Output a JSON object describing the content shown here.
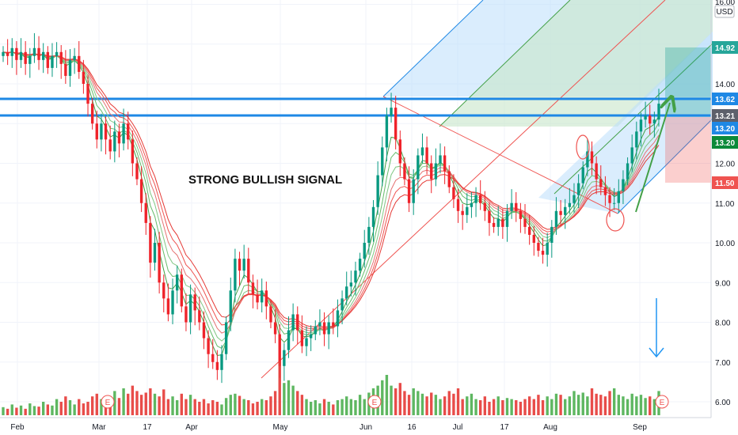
{
  "currency": "USD",
  "annotation": "STRONG BULLISH SIGNAL",
  "earnings_marker": "E",
  "colors": {
    "up": "#26a69a",
    "up_candle": "#089981",
    "down": "#ef232a",
    "volume_up": "#4caf50",
    "volume_down": "#e53935",
    "hline": "#1e88e5",
    "fork_blue": "#bbdefb",
    "fork_green": "#c8e6c9",
    "target": "#26a69a",
    "stop": "#ef5350",
    "arrow_green": "#43a047",
    "arrow_blue": "#2196f3"
  },
  "chart_data": {
    "type": "candlestick",
    "ylim": [
      5.7,
      16.0
    ],
    "y_ticks": [
      "6.00",
      "7.00",
      "8.00",
      "9.00",
      "10.00",
      "11.00",
      "12.00",
      "14.00"
    ],
    "y_top_partial": "16.00",
    "x_ticks": [
      "Feb",
      "Mar",
      "17",
      "Apr",
      "May",
      "Jun",
      "16",
      "Jul",
      "17",
      "Aug",
      "Sep"
    ],
    "price_labels": [
      {
        "value": "14.92",
        "color": "#26a69a"
      },
      {
        "value": "13.62",
        "color": "#1e88e5"
      },
      {
        "value": "13.21",
        "color": "#5d606b"
      },
      {
        "value": "13.20",
        "color": "#1e88e5"
      },
      {
        "value": "13.20",
        "color": "#0b8a3a"
      },
      {
        "value": "11.50",
        "color": "#ef5350"
      }
    ],
    "horizontal_lines": [
      13.62,
      13.21
    ],
    "closes": [
      14.8,
      14.7,
      14.9,
      14.6,
      14.8,
      14.5,
      14.7,
      14.9,
      14.6,
      14.8,
      14.4,
      14.7,
      14.8,
      14.5,
      14.2,
      14.6,
      14.7,
      14.3,
      14.0,
      13.5,
      13.0,
      12.6,
      13.0,
      12.6,
      12.3,
      12.8,
      12.5,
      13.0,
      12.6,
      12.0,
      11.6,
      11.0,
      10.5,
      9.5,
      10.0,
      9.0,
      8.6,
      8.2,
      8.8,
      9.2,
      8.4,
      8.0,
      8.7,
      8.3,
      8.0,
      7.6,
      7.2,
      7.0,
      6.8,
      7.2,
      8.0,
      8.8,
      9.6,
      9.3,
      9.6,
      9.0,
      8.7,
      8.5,
      8.8,
      8.4,
      8.0,
      7.7,
      6.9,
      7.3,
      7.8,
      8.2,
      7.8,
      7.4,
      7.6,
      7.7,
      7.9,
      8.0,
      7.7,
      8.0,
      7.9,
      8.3,
      8.6,
      8.9,
      9.0,
      9.3,
      9.6,
      10.0,
      10.4,
      10.9,
      11.7,
      12.4,
      13.2,
      13.4,
      12.6,
      12.0,
      11.6,
      11.0,
      11.6,
      12.2,
      12.4,
      12.0,
      11.6,
      12.0,
      12.2,
      11.8,
      11.4,
      11.1,
      10.8,
      10.7,
      10.9,
      11.0,
      11.2,
      11.0,
      10.8,
      10.5,
      10.4,
      10.6,
      10.4,
      10.8,
      11.0,
      10.8,
      10.6,
      10.4,
      10.2,
      10.0,
      9.8,
      9.7,
      10.0,
      10.4,
      10.8,
      10.7,
      10.9,
      11.0,
      11.2,
      11.5,
      11.9,
      12.3,
      12.0,
      11.6,
      11.4,
      11.2,
      11.0,
      11.0,
      11.3,
      11.6,
      12.0,
      12.4,
      12.8,
      13.1,
      13.2,
      13.0,
      13.1,
      13.5
    ],
    "volumes": [
      0.15,
      0.12,
      0.2,
      0.14,
      0.18,
      0.12,
      0.22,
      0.17,
      0.16,
      0.25,
      0.2,
      0.18,
      0.3,
      0.25,
      0.35,
      0.28,
      0.2,
      0.3,
      0.22,
      0.25,
      0.35,
      0.4,
      0.3,
      0.28,
      0.33,
      0.45,
      0.32,
      0.5,
      0.4,
      0.55,
      0.45,
      0.38,
      0.42,
      0.5,
      0.4,
      0.35,
      0.48,
      0.3,
      0.35,
      0.28,
      0.4,
      0.3,
      0.38,
      0.3,
      0.25,
      0.3,
      0.22,
      0.28,
      0.25,
      0.2,
      0.32,
      0.38,
      0.4,
      0.36,
      0.3,
      0.28,
      0.22,
      0.25,
      0.3,
      0.28,
      0.35,
      0.45,
      1.0,
      0.6,
      0.65,
      0.55,
      0.45,
      0.38,
      0.3,
      0.25,
      0.28,
      0.22,
      0.3,
      0.25,
      0.2,
      0.28,
      0.3,
      0.35,
      0.3,
      0.28,
      0.38,
      0.3,
      0.42,
      0.5,
      0.55,
      0.65,
      0.75,
      0.55,
      0.5,
      0.6,
      0.45,
      0.38,
      0.5,
      0.45,
      0.4,
      0.35,
      0.42,
      0.38,
      0.3,
      0.35,
      0.45,
      0.4,
      0.5,
      0.3,
      0.35,
      0.4,
      0.3,
      0.28,
      0.35,
      0.25,
      0.3,
      0.35,
      0.28,
      0.32,
      0.3,
      0.28,
      0.25,
      0.3,
      0.35,
      0.3,
      0.38,
      0.28,
      0.35,
      0.3,
      0.4,
      0.38,
      0.3,
      0.35,
      0.45,
      0.38,
      0.42,
      0.35,
      0.5,
      0.4,
      0.38,
      0.35,
      0.45,
      0.5,
      0.38,
      0.35,
      0.3,
      0.4,
      0.35,
      0.38,
      0.32,
      0.35,
      0.3,
      0.45
    ]
  }
}
